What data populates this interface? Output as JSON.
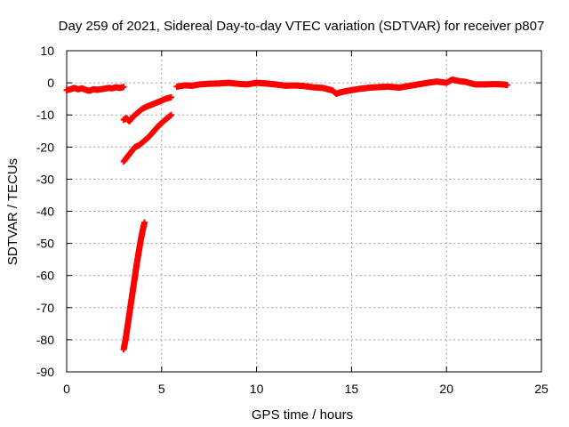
{
  "chart_data": {
    "type": "scatter",
    "title": "Day 259 of 2021, Sidereal Day-to-day VTEC variation (SDTVAR) for receiver p807",
    "xlabel": "GPS time / hours",
    "ylabel": "SDTVAR / TECUs",
    "xlim": [
      0,
      25
    ],
    "ylim": [
      -90,
      10
    ],
    "x_ticks": [
      0,
      5,
      10,
      15,
      20,
      25
    ],
    "y_ticks": [
      10,
      0,
      -10,
      -20,
      -30,
      -40,
      -50,
      -60,
      -70,
      -80,
      -90
    ],
    "x_tick_labels": [
      "0",
      "5",
      "10",
      "15",
      "20",
      "25"
    ],
    "y_tick_labels": [
      "10",
      "0",
      "-10",
      "-20",
      "-30",
      "-40",
      "-50",
      "-60",
      "-70",
      "-80",
      "-90"
    ],
    "grid": true,
    "marker": "plus",
    "marker_color": "#ff0000",
    "segments": [
      {
        "points": [
          [
            0.0,
            -2.3
          ],
          [
            0.2,
            -2.0
          ],
          [
            0.4,
            -1.6
          ],
          [
            0.6,
            -2.0
          ],
          [
            0.8,
            -1.7
          ],
          [
            1.0,
            -2.2
          ],
          [
            1.2,
            -2.5
          ],
          [
            1.4,
            -2.0
          ],
          [
            1.6,
            -2.2
          ],
          [
            1.8,
            -2.0
          ],
          [
            2.0,
            -1.8
          ],
          [
            2.2,
            -1.6
          ],
          [
            2.4,
            -1.7
          ],
          [
            2.6,
            -1.4
          ],
          [
            2.8,
            -1.6
          ],
          [
            3.0,
            -1.3
          ]
        ]
      },
      {
        "points": [
          [
            3.0,
            -11.5
          ],
          [
            3.15,
            -11.0
          ],
          [
            3.3,
            -12.0
          ],
          [
            3.5,
            -10.5
          ],
          [
            3.8,
            -9.0
          ],
          [
            4.0,
            -8.0
          ],
          [
            4.3,
            -7.2
          ],
          [
            4.6,
            -6.5
          ],
          [
            4.9,
            -5.8
          ],
          [
            5.2,
            -5.0
          ],
          [
            5.5,
            -4.5
          ]
        ]
      },
      {
        "points": [
          [
            3.0,
            -24.5
          ],
          [
            3.2,
            -23.0
          ],
          [
            3.4,
            -21.5
          ],
          [
            3.6,
            -20.0
          ],
          [
            3.8,
            -19.5
          ],
          [
            4.0,
            -18.5
          ],
          [
            4.3,
            -17.0
          ],
          [
            4.6,
            -15.0
          ],
          [
            4.9,
            -13.0
          ],
          [
            5.2,
            -11.5
          ],
          [
            5.5,
            -10.0
          ]
        ]
      },
      {
        "points": [
          [
            3.0,
            -83.0
          ],
          [
            3.1,
            -80.0
          ],
          [
            3.2,
            -76.0
          ],
          [
            3.3,
            -72.0
          ],
          [
            3.4,
            -68.0
          ],
          [
            3.5,
            -64.0
          ],
          [
            3.6,
            -60.0
          ],
          [
            3.7,
            -56.0
          ],
          [
            3.8,
            -52.5
          ],
          [
            3.9,
            -49.0
          ],
          [
            4.0,
            -46.0
          ],
          [
            4.1,
            -43.5
          ]
        ]
      },
      {
        "points": [
          [
            5.8,
            -1.2
          ],
          [
            6.2,
            -0.8
          ],
          [
            6.6,
            -0.9
          ],
          [
            7.0,
            -0.5
          ],
          [
            7.5,
            -0.3
          ],
          [
            8.0,
            -0.2
          ],
          [
            8.5,
            0.0
          ],
          [
            9.0,
            -0.3
          ],
          [
            9.5,
            -0.5
          ],
          [
            10.0,
            0.0
          ],
          [
            10.5,
            -0.2
          ],
          [
            11.0,
            -0.5
          ],
          [
            11.5,
            -0.9
          ],
          [
            12.0,
            -0.8
          ],
          [
            12.5,
            -1.0
          ],
          [
            13.0,
            -1.4
          ],
          [
            13.5,
            -1.6
          ],
          [
            14.0,
            -2.4
          ],
          [
            14.2,
            -3.4
          ],
          [
            14.4,
            -3.0
          ],
          [
            14.7,
            -2.6
          ],
          [
            15.0,
            -2.3
          ],
          [
            15.5,
            -1.8
          ],
          [
            16.0,
            -1.5
          ],
          [
            16.5,
            -1.3
          ],
          [
            17.0,
            -1.2
          ],
          [
            17.5,
            -1.5
          ],
          [
            18.0,
            -1.0
          ],
          [
            18.5,
            -0.5
          ],
          [
            19.0,
            0.0
          ],
          [
            19.5,
            0.4
          ],
          [
            20.0,
            0.0
          ],
          [
            20.3,
            1.0
          ],
          [
            20.7,
            0.5
          ],
          [
            21.0,
            0.3
          ],
          [
            21.5,
            -0.5
          ],
          [
            22.0,
            -0.5
          ],
          [
            22.5,
            -0.4
          ],
          [
            23.0,
            -0.5
          ],
          [
            23.2,
            -0.7
          ]
        ]
      }
    ]
  }
}
